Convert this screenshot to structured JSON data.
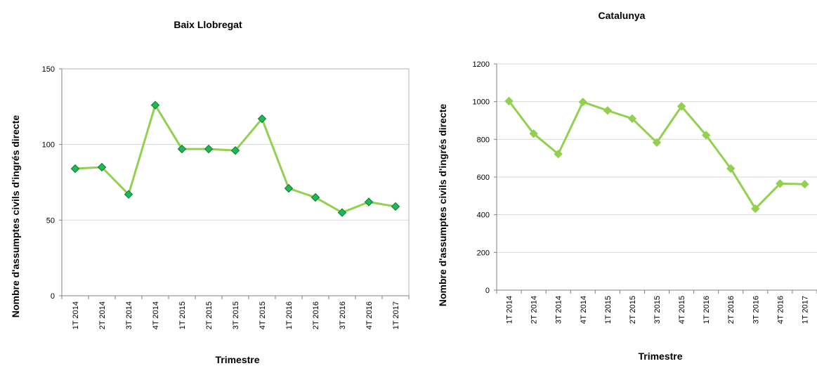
{
  "chart_data": [
    {
      "type": "line",
      "title": "Baix Llobregat",
      "xlabel": "Trimestre",
      "ylabel": "Nombre d'assumptes civils d'ingrés directe",
      "categories": [
        "1T 2014",
        "2T 2014",
        "3T 2014",
        "4T 2014",
        "1T 2015",
        "2T 2015",
        "3T 2015",
        "4T 2015",
        "1T 2016",
        "2T 2016",
        "3T 2016",
        "4T 2016",
        "1T 2017"
      ],
      "series": [
        {
          "values": [
            84,
            85,
            67,
            126,
            97,
            97,
            96,
            117,
            71,
            65,
            55,
            62,
            59
          ]
        }
      ],
      "ylim": [
        0,
        150
      ],
      "yticks": [
        0,
        50,
        100,
        150
      ],
      "grid": true,
      "frame": true,
      "line_color": "#92d050",
      "marker_color": "#1db954",
      "marker_outline": "#0c7a2c"
    },
    {
      "type": "line",
      "title": "Catalunya",
      "xlabel": "Trimestre",
      "ylabel": "Nombre d'assumptes civils d'ingrés directe",
      "categories": [
        "1T 2014",
        "2T 2014",
        "3T 2014",
        "4T 2014",
        "1T 2015",
        "2T 2015",
        "3T 2015",
        "4T 2015",
        "1T 2016",
        "2T 2016",
        "3T 2016",
        "4T 2016",
        "1T 2017"
      ],
      "series": [
        {
          "values": [
            1003,
            830,
            722,
            998,
            953,
            910,
            783,
            975,
            822,
            645,
            432,
            565,
            562
          ]
        }
      ],
      "ylim": [
        0,
        1200
      ],
      "yticks": [
        0,
        200,
        400,
        600,
        800,
        1000,
        1200
      ],
      "grid": true,
      "frame": false,
      "line_color": "#92d050",
      "marker_color": "#92d050",
      "marker_outline": "#92d050"
    }
  ]
}
